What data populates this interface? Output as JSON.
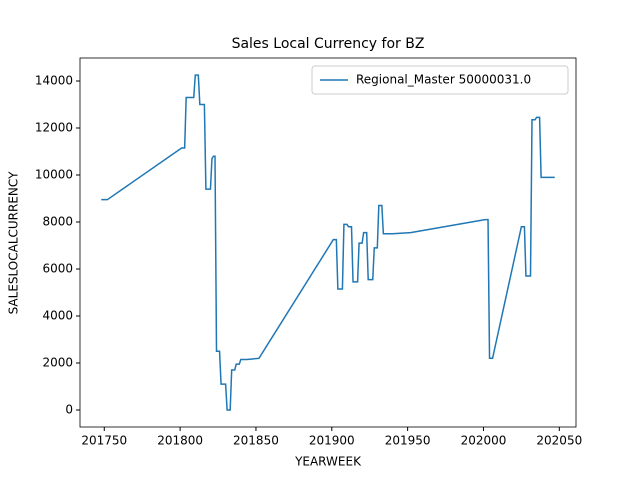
{
  "chart_data": {
    "type": "line",
    "title": "Sales Local Currency for BZ",
    "x_label": "YEARWEEK",
    "y_label": "SALESLOCALCURRENCY",
    "x": [
      201748,
      201752,
      201801,
      201803,
      201804,
      201809,
      201810,
      201812,
      201813,
      201816,
      201817,
      201820,
      201821,
      201822,
      201823,
      201824,
      201826,
      201827,
      201830,
      201831,
      201833,
      201834,
      201836,
      201837,
      201839,
      201840,
      201842,
      201844,
      201852,
      201901,
      201903,
      201904,
      201907,
      201908,
      201910,
      201911,
      201913,
      201914,
      201917,
      201918,
      201920,
      201921,
      201923,
      201924,
      201927,
      201928,
      201930,
      201931,
      201933,
      201934,
      201940,
      201952,
      202001,
      202003,
      202004,
      202006,
      202025,
      202027,
      202028,
      202031,
      202032,
      202034,
      202035,
      202037,
      202038,
      202047
    ],
    "series": [
      {
        "name": "Regional_Master 50000031.0",
        "color": "#1f77b4",
        "values": [
          8950,
          8950,
          11150,
          11150,
          13300,
          13300,
          14250,
          14250,
          13000,
          13000,
          9400,
          9400,
          10700,
          10800,
          10800,
          2500,
          2500,
          1100,
          1100,
          0,
          0,
          1700,
          1700,
          1950,
          1950,
          2150,
          2150,
          2150,
          2200,
          7250,
          7250,
          5150,
          5150,
          7900,
          7900,
          7800,
          7800,
          5450,
          5450,
          7100,
          7100,
          7550,
          7550,
          5550,
          5550,
          6900,
          6900,
          8700,
          8700,
          7500,
          7500,
          7550,
          8100,
          8100,
          2200,
          2200,
          7800,
          7800,
          5700,
          5700,
          12350,
          12350,
          12450,
          12450,
          9900,
          9900
        ]
      }
    ],
    "xlim": [
      201734,
      202061
    ],
    "ylim": [
      -723,
      14979
    ],
    "xticks": [
      201750,
      201800,
      201850,
      201900,
      201950,
      202000,
      202050
    ],
    "yticks": [
      0,
      2000,
      4000,
      6000,
      8000,
      10000,
      12000,
      14000
    ],
    "legend": "upper right"
  }
}
